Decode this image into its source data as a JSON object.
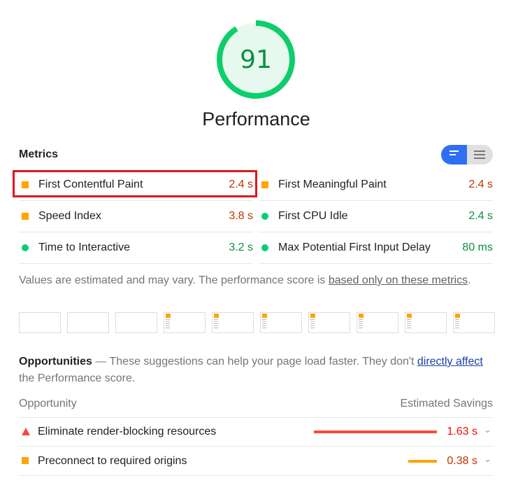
{
  "gauge": {
    "score": "91",
    "fraction": 0.91,
    "color": "#0cce6b",
    "fill": "#e7f9ee"
  },
  "category_title": "Performance",
  "metrics": {
    "title": "Metrics",
    "toggle": {
      "compact_icon": "compact-view-icon",
      "expanded_icon": "expanded-view-icon",
      "active": "compact"
    },
    "items": [
      {
        "label": "First Contentful Paint",
        "value": "2.4 s",
        "rating": "average"
      },
      {
        "label": "First Meaningful Paint",
        "value": "2.4 s",
        "rating": "average"
      },
      {
        "label": "Speed Index",
        "value": "3.8 s",
        "rating": "average"
      },
      {
        "label": "First CPU Idle",
        "value": "2.4 s",
        "rating": "pass"
      },
      {
        "label": "Time to Interactive",
        "value": "3.2 s",
        "rating": "pass"
      },
      {
        "label": "Max Potential First Input Delay",
        "value": "80 ms",
        "rating": "pass"
      }
    ],
    "note": "Values are estimated and may vary. The performance score is ",
    "note_link": "based only on these metrics",
    "note_end": "."
  },
  "filmstrip": {
    "frames": [
      false,
      false,
      false,
      true,
      true,
      true,
      true,
      true,
      true,
      true
    ]
  },
  "opportunities": {
    "title": "Opportunities",
    "desc": " — These suggestions can help your page load faster. They don't ",
    "link": "directly affect",
    "desc_end": " the Performance score.",
    "col_opportunity": "Opportunity",
    "col_savings": "Estimated Savings",
    "items": [
      {
        "label": "Eliminate render-blocking resources",
        "savings": "1.63 s",
        "savings_seconds": 1.63,
        "rating": "fail",
        "color": "#f44b3f"
      },
      {
        "label": "Preconnect to required origins",
        "savings": "0.38 s",
        "savings_seconds": 0.38,
        "rating": "average",
        "color": "#ffa400"
      }
    ]
  }
}
